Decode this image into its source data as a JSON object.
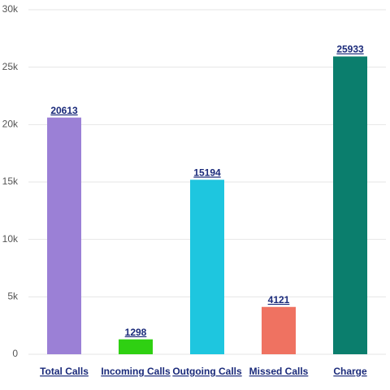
{
  "chart_data": {
    "type": "bar",
    "categories": [
      "Total Calls",
      "Incoming Calls",
      "Outgoing Calls",
      "Missed Calls",
      "Charge"
    ],
    "values": [
      20613,
      1298,
      15194,
      4121,
      25933
    ],
    "colors": [
      "#9b80d6",
      "#2fd012",
      "#1ec6df",
      "#ef7261",
      "#0b7e6d"
    ],
    "ylim": [
      0,
      30000
    ],
    "yticks": [
      0,
      {
        "value": 5000,
        "label": "5k"
      },
      {
        "value": 10000,
        "label": "10k"
      },
      {
        "value": 15000,
        "label": "15k"
      },
      {
        "value": 20000,
        "label": "20k"
      },
      {
        "value": 25000,
        "label": "25k"
      },
      {
        "value": 30000,
        "label": "30k"
      }
    ],
    "grid": true
  }
}
